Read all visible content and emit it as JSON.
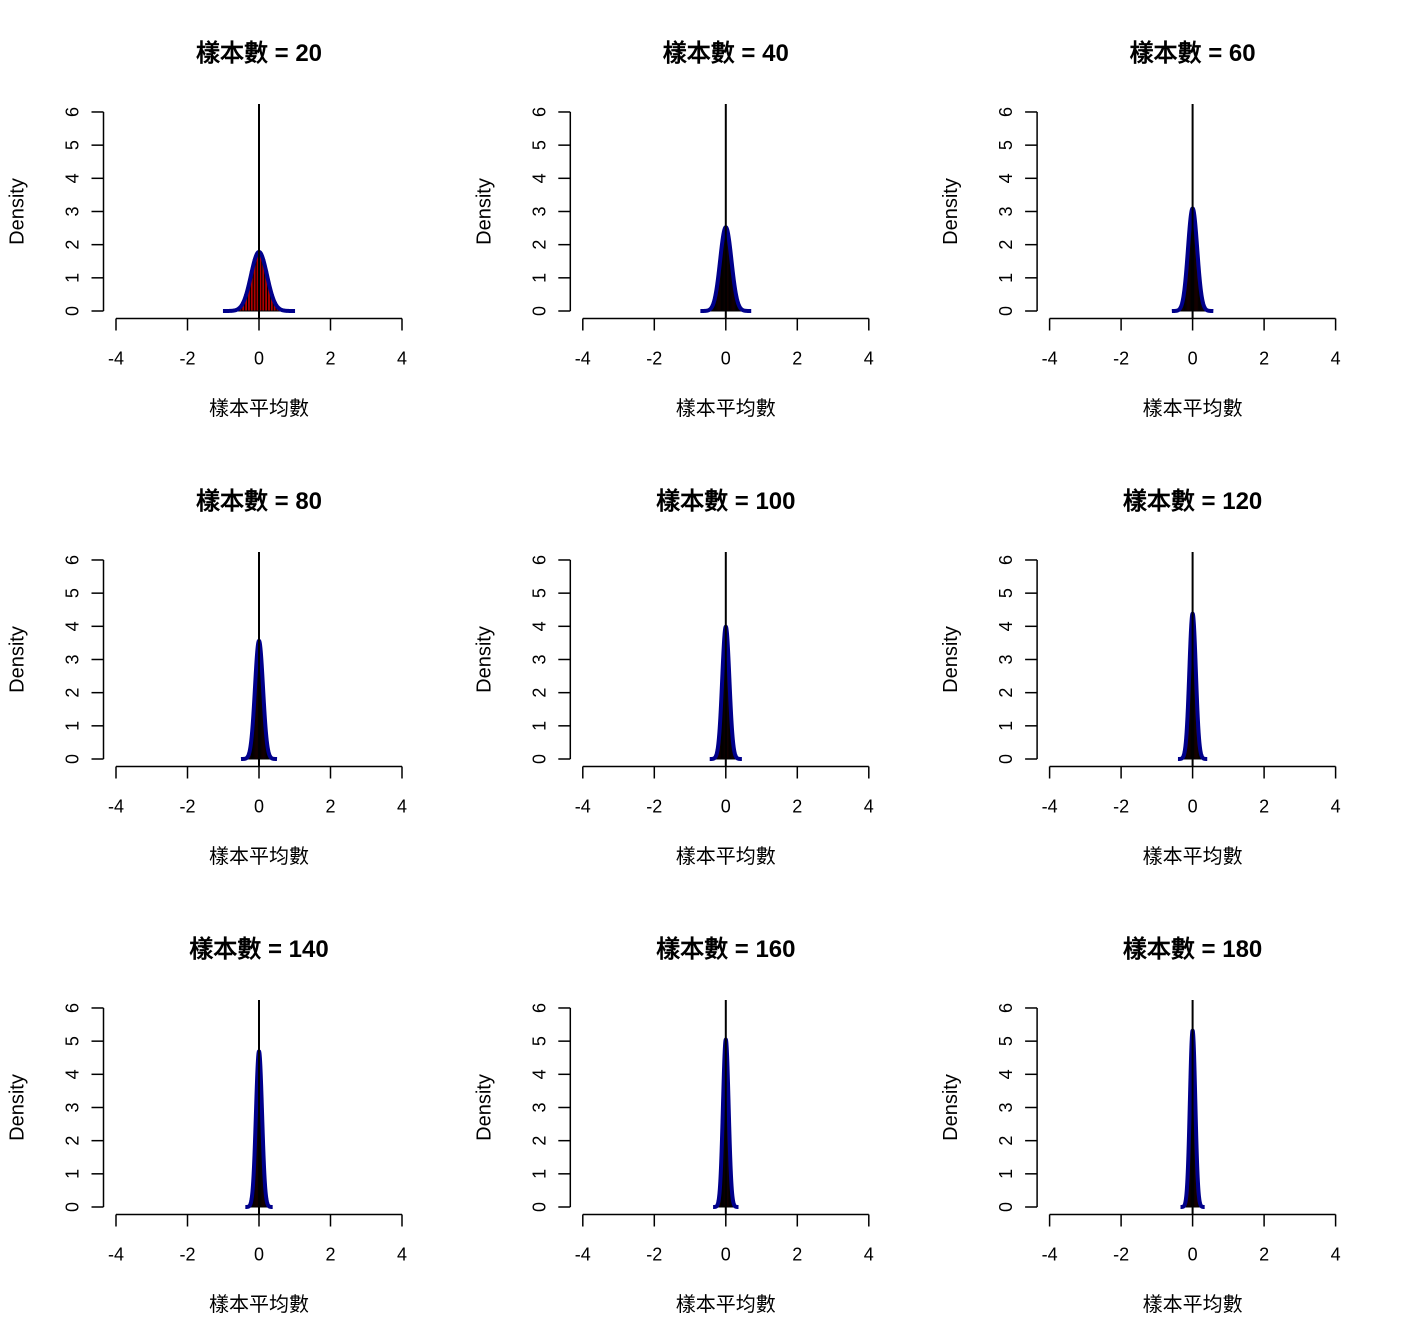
{
  "chart_data": {
    "type": "histogram-grid",
    "layout": "3x3",
    "xlabel": "樣本平均數",
    "ylabel": "Density",
    "xlim": [
      -4,
      4
    ],
    "ylim": [
      0,
      6
    ],
    "xticks": [
      -4,
      -2,
      0,
      2,
      4
    ],
    "yticks": [
      0,
      1,
      2,
      3,
      4,
      5,
      6
    ],
    "vline_x": 0,
    "colors": {
      "bars": "#b00000",
      "bar_border": "#000000",
      "curve": "#00008b",
      "axis": "#000000"
    },
    "panels": [
      {
        "title": "樣本數 = 20",
        "n": 20,
        "mean": 0,
        "sd": 0.224,
        "peak_density": 1.78,
        "bin_width": 0.08
      },
      {
        "title": "樣本數 = 40",
        "n": 40,
        "mean": 0,
        "sd": 0.158,
        "peak_density": 2.52,
        "bin_width": 0.03
      },
      {
        "title": "樣本數 = 60",
        "n": 60,
        "mean": 0,
        "sd": 0.129,
        "peak_density": 3.09,
        "bin_width": 0.03
      },
      {
        "title": "樣本數 = 80",
        "n": 80,
        "mean": 0,
        "sd": 0.112,
        "peak_density": 3.57,
        "bin_width": 0.03
      },
      {
        "title": "樣本數 = 100",
        "n": 100,
        "mean": 0,
        "sd": 0.1,
        "peak_density": 3.99,
        "bin_width": 0.03
      },
      {
        "title": "樣本數 = 120",
        "n": 120,
        "mean": 0,
        "sd": 0.091,
        "peak_density": 4.37,
        "bin_width": 0.03
      },
      {
        "title": "樣本數 = 140",
        "n": 140,
        "mean": 0,
        "sd": 0.085,
        "peak_density": 4.72,
        "bin_width": 0.03
      },
      {
        "title": "樣本數 = 160",
        "n": 160,
        "mean": 0,
        "sd": 0.079,
        "peak_density": 5.05,
        "bin_width": 0.03
      },
      {
        "title": "樣本數 = 180",
        "n": 180,
        "mean": 0,
        "sd": 0.075,
        "peak_density": 5.35,
        "bin_width": 0.03
      }
    ]
  }
}
